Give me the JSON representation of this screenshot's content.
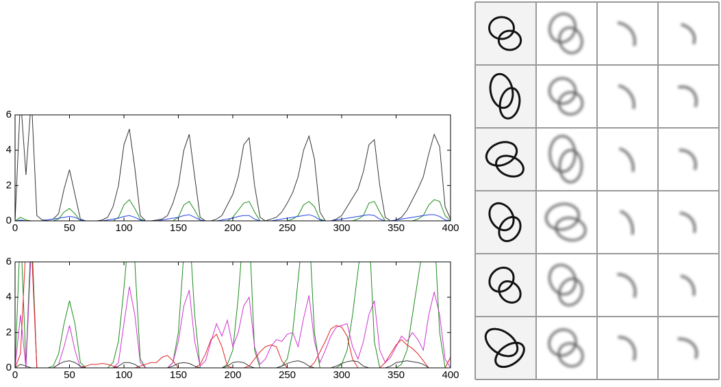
{
  "chart_data": [
    {
      "type": "line",
      "x": [
        0,
        5,
        10,
        15,
        20,
        25,
        30,
        35,
        40,
        45,
        50,
        55,
        60,
        65,
        70,
        75,
        80,
        85,
        90,
        95,
        100,
        105,
        110,
        115,
        120,
        125,
        130,
        135,
        140,
        145,
        150,
        155,
        160,
        165,
        170,
        175,
        180,
        185,
        190,
        195,
        200,
        205,
        210,
        215,
        220,
        225,
        230,
        235,
        240,
        245,
        250,
        255,
        260,
        265,
        270,
        275,
        280,
        285,
        290,
        295,
        300,
        305,
        310,
        315,
        320,
        325,
        330,
        335,
        340,
        345,
        350,
        355,
        360,
        365,
        370,
        375,
        380,
        385,
        390,
        395,
        400
      ],
      "xlim": [
        0,
        400
      ],
      "xticks": [
        0,
        50,
        100,
        150,
        200,
        250,
        300,
        350,
        400
      ],
      "ylim": [
        0,
        6
      ],
      "yticks": [
        0,
        2,
        4,
        6
      ],
      "series": [
        {
          "color": "#333333",
          "values": [
            0,
            7,
            2.6,
            7,
            0.3,
            0.05,
            0.05,
            0.1,
            0.4,
            1.8,
            2.9,
            1.5,
            0.1,
            0,
            0,
            0,
            0.05,
            0.2,
            0.8,
            2,
            4.3,
            5.2,
            3,
            0.3,
            0,
            0,
            0.05,
            0.1,
            0.3,
            1,
            2,
            4,
            4.9,
            2.5,
            0.2,
            0,
            0,
            0.1,
            0.3,
            0.9,
            1.5,
            2.5,
            4.3,
            4.7,
            2,
            0.2,
            0,
            0.1,
            0.2,
            0.5,
            1,
            1.6,
            2.5,
            4,
            4.8,
            3.5,
            0.5,
            0,
            0,
            0.1,
            0.3,
            0.8,
            1.3,
            1.8,
            2.8,
            4.3,
            4.6,
            2,
            0.2,
            0,
            0.05,
            0.2,
            0.6,
            1.2,
            1.8,
            2.5,
            3.8,
            4.9,
            4.2,
            0.8,
            0.1
          ]
        },
        {
          "color": "#1a8a1a",
          "values": [
            0,
            0.2,
            0.05,
            0,
            0,
            0,
            0,
            0,
            0.1,
            0.5,
            0.7,
            0.4,
            0,
            0,
            0,
            0,
            0,
            0,
            0,
            0.2,
            0.9,
            1.2,
            0.7,
            0.1,
            0,
            0,
            0,
            0,
            0,
            0,
            0.2,
            0.9,
            1.1,
            0.6,
            0.05,
            0,
            0,
            0,
            0,
            0,
            0.2,
            0.6,
            1,
            1.1,
            0.5,
            0,
            0,
            0,
            0,
            0,
            0,
            0.1,
            0.3,
            0.9,
            1.1,
            0.8,
            0.1,
            0,
            0,
            0,
            0,
            0,
            0,
            0.1,
            0.3,
            1,
            1.1,
            0.5,
            0,
            0,
            0,
            0,
            0,
            0,
            0.1,
            0.3,
            0.9,
            1.2,
            1.1,
            0.3,
            0
          ]
        },
        {
          "color": "#2040e0",
          "values": [
            0,
            0.05,
            0,
            0,
            0,
            0,
            0.05,
            0.1,
            0.15,
            0.2,
            0.25,
            0.2,
            0.05,
            0,
            0,
            0,
            0,
            0.05,
            0.1,
            0.15,
            0.25,
            0.3,
            0.2,
            0.05,
            0,
            0,
            0,
            0.05,
            0.1,
            0.15,
            0.2,
            0.3,
            0.35,
            0.2,
            0.05,
            0,
            0,
            0,
            0.05,
            0.1,
            0.15,
            0.25,
            0.3,
            0.3,
            0.1,
            0,
            0,
            0,
            0.05,
            0.1,
            0.15,
            0.2,
            0.25,
            0.3,
            0.35,
            0.25,
            0.05,
            0,
            0,
            0.05,
            0.1,
            0.15,
            0.2,
            0.25,
            0.3,
            0.35,
            0.3,
            0.1,
            0,
            0,
            0.05,
            0.1,
            0.15,
            0.2,
            0.25,
            0.3,
            0.35,
            0.35,
            0.25,
            0.05,
            0
          ]
        }
      ]
    },
    {
      "type": "line",
      "x": [
        0,
        5,
        10,
        15,
        20,
        25,
        30,
        35,
        40,
        45,
        50,
        55,
        60,
        65,
        70,
        75,
        80,
        85,
        90,
        95,
        100,
        105,
        110,
        115,
        120,
        125,
        130,
        135,
        140,
        145,
        150,
        155,
        160,
        165,
        170,
        175,
        180,
        185,
        190,
        195,
        200,
        205,
        210,
        215,
        220,
        225,
        230,
        235,
        240,
        245,
        250,
        255,
        260,
        265,
        270,
        275,
        280,
        285,
        290,
        295,
        300,
        305,
        310,
        315,
        320,
        325,
        330,
        335,
        340,
        345,
        350,
        355,
        360,
        365,
        370,
        375,
        380,
        385,
        390,
        395,
        400
      ],
      "xlim": [
        0,
        400
      ],
      "xticks": [
        0,
        50,
        100,
        150,
        200,
        250,
        300,
        350,
        400
      ],
      "ylim": [
        0,
        6
      ],
      "yticks": [
        0,
        2,
        4,
        6
      ],
      "series": [
        {
          "color": "#1a8a1a",
          "values": [
            0,
            8,
            0.2,
            8,
            0,
            0,
            0,
            0.1,
            0.8,
            2.5,
            3.8,
            2.5,
            0.3,
            0,
            0,
            0,
            0,
            0,
            0.3,
            1.5,
            4.5,
            8,
            6,
            0.5,
            0,
            0,
            0,
            0,
            0,
            0.3,
            2,
            6.5,
            8,
            3,
            0,
            0,
            0,
            0,
            0,
            0.2,
            1,
            4,
            8,
            8,
            1,
            0,
            0,
            0,
            0,
            0.1,
            0.5,
            2,
            5,
            8,
            8,
            2,
            0,
            0,
            0,
            0,
            0.2,
            1,
            3,
            5.5,
            8,
            8,
            1.5,
            0,
            0,
            0,
            0,
            0.2,
            1,
            3,
            5,
            7,
            8,
            8,
            2,
            0,
            0
          ]
        },
        {
          "color": "#d030d0",
          "values": [
            0,
            3,
            0,
            7,
            0,
            0,
            0,
            0,
            0.2,
            1.2,
            2.4,
            1,
            0,
            0,
            0,
            0,
            0,
            0,
            0,
            0.3,
            2.5,
            4.6,
            3,
            0.3,
            0,
            0,
            0,
            0,
            0,
            0.3,
            1.5,
            3.5,
            4.4,
            1.5,
            0.1,
            0.4,
            1.5,
            2.5,
            1.8,
            2.7,
            1.2,
            2,
            3.5,
            4,
            1.2,
            0.2,
            0.5,
            1.2,
            1.6,
            1.5,
            1.9,
            2,
            1.2,
            2.8,
            4.1,
            1.5,
            0.3,
            1,
            1.8,
            2.3,
            2.4,
            2.5,
            1.2,
            0.5,
            1.5,
            3,
            3.8,
            1,
            0.3,
            0.6,
            1.2,
            1.8,
            1.5,
            2,
            1.6,
            1,
            3,
            4.3,
            3,
            0.5,
            0
          ]
        },
        {
          "color": "#e02020",
          "values": [
            0,
            0.8,
            7,
            7,
            0,
            0,
            0,
            0,
            0,
            0,
            0,
            0,
            0,
            0.1,
            0.2,
            0.2,
            0.25,
            0.2,
            0.1,
            0,
            0,
            0,
            0,
            0.1,
            0.2,
            0.3,
            0.3,
            0.6,
            0.7,
            0.4,
            0,
            0,
            0,
            0,
            0.2,
            0.8,
            1.6,
            1.9,
            1.2,
            0.1,
            0,
            0,
            0,
            0.1,
            0.5,
            0.9,
            1.2,
            1.3,
            1.2,
            0.4,
            0,
            0,
            0,
            0,
            0,
            0.3,
            0.9,
            1.5,
            2.2,
            2.4,
            2.3,
            1.8,
            0.5,
            0,
            0,
            0,
            0,
            0,
            0.3,
            0.8,
            1.3,
            1.6,
            1.3,
            1.1,
            0.8,
            0.4,
            0,
            0,
            0,
            0,
            0.6
          ]
        },
        {
          "color": "#333333",
          "values": [
            0,
            0.2,
            0.1,
            0,
            0,
            0,
            0,
            0,
            0.2,
            0.35,
            0.4,
            0.3,
            0.1,
            0,
            0,
            0,
            0,
            0,
            0,
            0.1,
            0.3,
            0.3,
            0.2,
            0,
            0,
            0,
            0,
            0,
            0,
            0.1,
            0.25,
            0.3,
            0.25,
            0.1,
            0,
            0,
            0,
            0,
            0,
            0.1,
            0.3,
            0.35,
            0.3,
            0.1,
            0,
            0,
            0,
            0,
            0,
            0.1,
            0.25,
            0.35,
            0.4,
            0.3,
            0.1,
            0,
            0,
            0,
            0,
            0.1,
            0.25,
            0.35,
            0.4,
            0.35,
            0.1,
            0,
            0,
            0,
            0,
            0.1,
            0.3,
            0.35,
            0.4,
            0.35,
            0.3,
            0.2,
            0,
            0,
            0,
            0,
            0
          ]
        }
      ]
    }
  ]
}
